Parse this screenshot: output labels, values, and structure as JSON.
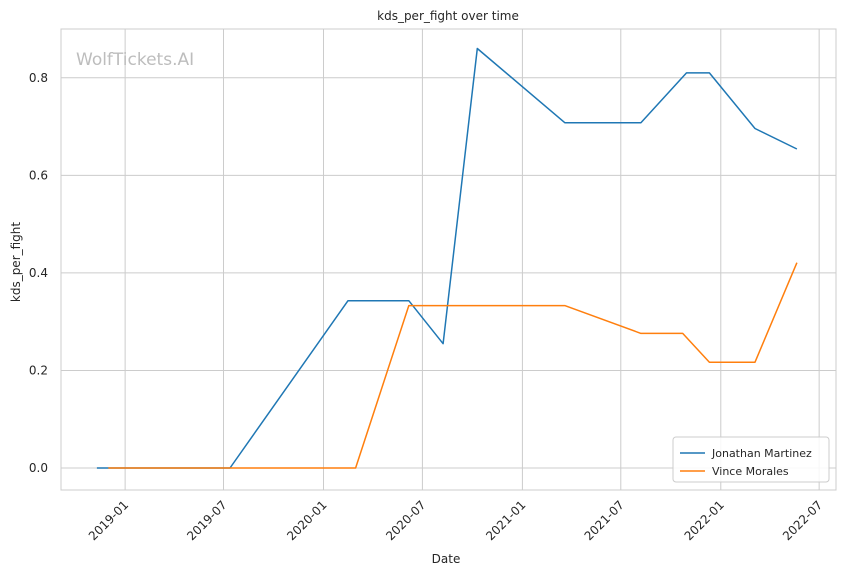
{
  "chart_data": {
    "type": "line",
    "title": "kds_per_fight over time",
    "xlabel": "Date",
    "ylabel": "kds_per_fight",
    "watermark": "WolfTickets.AI",
    "xlim": [
      "2018-09-05",
      "2022-08-01"
    ],
    "ylim": [
      -0.045,
      0.9
    ],
    "x_ticks": [
      {
        "date": "2019-01-01",
        "label": "2019-01"
      },
      {
        "date": "2019-07-01",
        "label": "2019-07"
      },
      {
        "date": "2020-01-01",
        "label": "2020-01"
      },
      {
        "date": "2020-07-01",
        "label": "2020-07"
      },
      {
        "date": "2021-01-01",
        "label": "2021-01"
      },
      {
        "date": "2021-07-01",
        "label": "2021-07"
      },
      {
        "date": "2022-01-01",
        "label": "2022-01"
      },
      {
        "date": "2022-07-01",
        "label": "2022-07"
      }
    ],
    "y_ticks": [
      {
        "value": 0.0,
        "label": "0.0"
      },
      {
        "value": 0.2,
        "label": "0.2"
      },
      {
        "value": 0.4,
        "label": "0.4"
      },
      {
        "value": 0.6,
        "label": "0.6"
      },
      {
        "value": 0.8,
        "label": "0.8"
      }
    ],
    "grid": true,
    "legend_position": "lower-right",
    "series": [
      {
        "name": "Jonathan Martinez",
        "color": "#1f77b4",
        "points": [
          {
            "x": "2018-11-10",
            "y": 0.0
          },
          {
            "x": "2019-07-13",
            "y": 0.0
          },
          {
            "x": "2020-02-15",
            "y": 0.343
          },
          {
            "x": "2020-06-06",
            "y": 0.343
          },
          {
            "x": "2020-08-08",
            "y": 0.255
          },
          {
            "x": "2020-10-10",
            "y": 0.86
          },
          {
            "x": "2021-03-20",
            "y": 0.708
          },
          {
            "x": "2021-08-07",
            "y": 0.708
          },
          {
            "x": "2021-10-30",
            "y": 0.81
          },
          {
            "x": "2021-12-11",
            "y": 0.81
          },
          {
            "x": "2022-03-05",
            "y": 0.696
          },
          {
            "x": "2022-05-21",
            "y": 0.654
          }
        ]
      },
      {
        "name": "Vince Morales",
        "color": "#ff7f0e",
        "points": [
          {
            "x": "2018-12-01",
            "y": 0.0
          },
          {
            "x": "2020-02-29",
            "y": 0.0
          },
          {
            "x": "2020-06-06",
            "y": 0.333
          },
          {
            "x": "2021-03-20",
            "y": 0.333
          },
          {
            "x": "2021-08-07",
            "y": 0.276
          },
          {
            "x": "2021-10-23",
            "y": 0.276
          },
          {
            "x": "2021-12-11",
            "y": 0.217
          },
          {
            "x": "2022-03-05",
            "y": 0.217
          },
          {
            "x": "2022-05-21",
            "y": 0.421
          }
        ]
      }
    ]
  }
}
